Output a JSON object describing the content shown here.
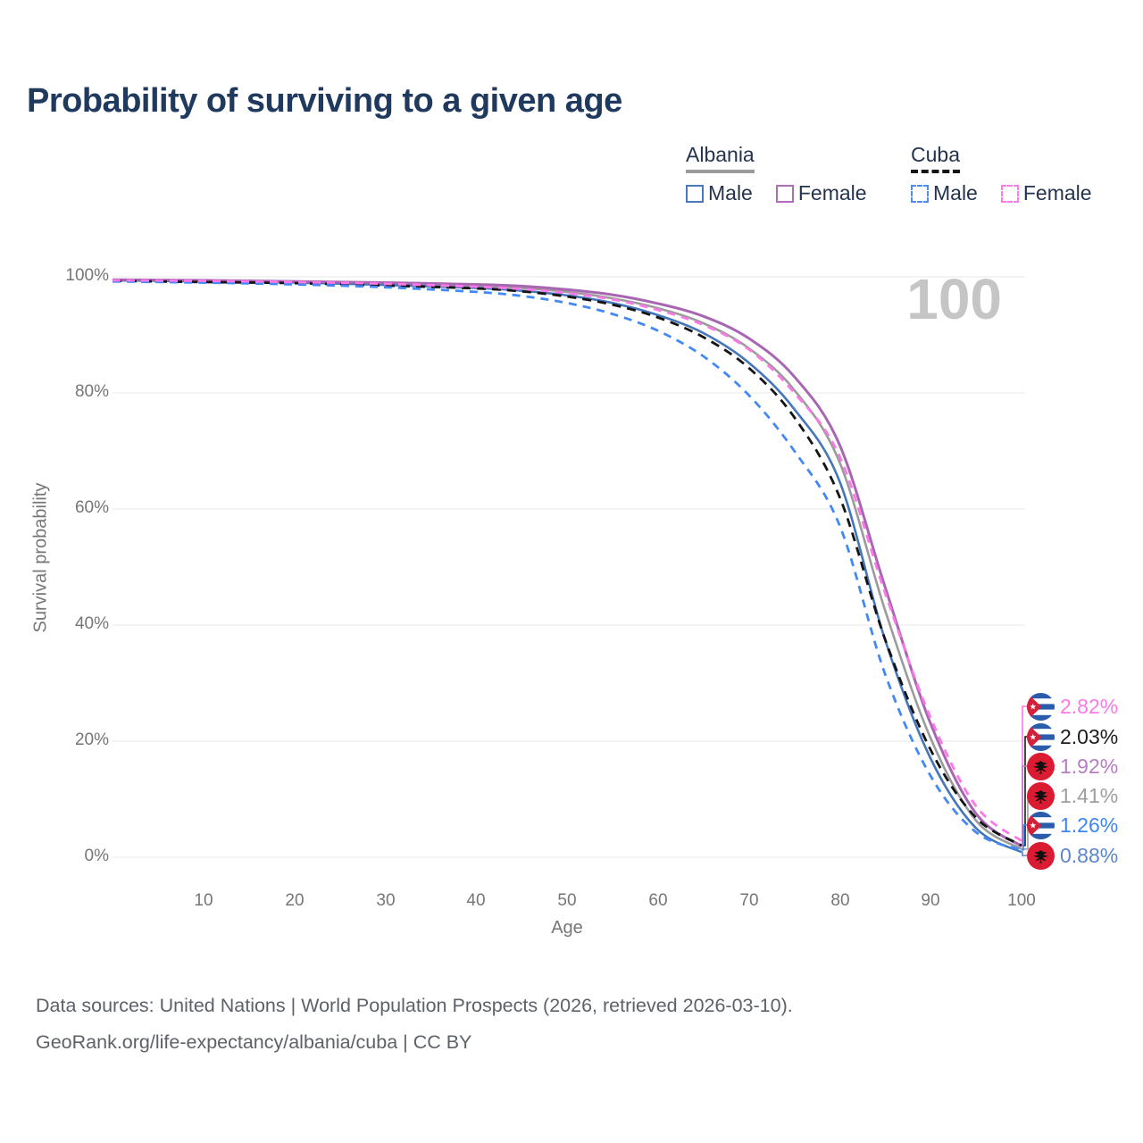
{
  "title": "Probability of surviving to a given age",
  "watermark": "100",
  "legend": {
    "groups": [
      {
        "label": "Albania",
        "line_style": "solid",
        "underline_color": "#9b9b9b",
        "items": [
          {
            "label": "Male",
            "color": "#4a78bd"
          },
          {
            "label": "Female",
            "color": "#b06cb8"
          }
        ]
      },
      {
        "label": "Cuba",
        "line_style": "dashed",
        "underline_color": "#141414",
        "items": [
          {
            "label": "Male",
            "color": "#4d8cf5"
          },
          {
            "label": "Female",
            "color": "#fb7ce8"
          }
        ]
      }
    ]
  },
  "chart_data": {
    "type": "line",
    "title": "Probability of surviving to a given age",
    "xlabel": "Age",
    "ylabel": "Survival probability",
    "xlim": [
      0,
      100
    ],
    "ylim": [
      0,
      100
    ],
    "grid": "horizontal",
    "legend_position": "top-right",
    "x_ticks": [
      "10",
      "20",
      "30",
      "40",
      "50",
      "60",
      "70",
      "80",
      "90",
      "100"
    ],
    "y_ticks": [
      "100%",
      "80%",
      "60%",
      "40%",
      "20%",
      "0%"
    ],
    "y_tick_values": [
      100,
      80,
      60,
      40,
      20,
      0
    ],
    "x": [
      0,
      10,
      20,
      30,
      40,
      45,
      50,
      55,
      60,
      65,
      70,
      75,
      80,
      85,
      90,
      95,
      100
    ],
    "series": [
      {
        "name": "Albania Total",
        "country": "Albania",
        "sex": "Total",
        "color": "#9b9b9b",
        "dash": null,
        "width": 2.6,
        "values": [
          99.4,
          99.3,
          99.2,
          98.9,
          98.5,
          98.1,
          97.4,
          96.3,
          94.6,
          92.0,
          87.7,
          80.5,
          68.0,
          42.5,
          20.5,
          6.3,
          1.41
        ]
      },
      {
        "name": "Albania Male",
        "country": "Albania",
        "sex": "Male",
        "color": "#4476ba",
        "dash": null,
        "width": 2.6,
        "values": [
          99.4,
          99.2,
          99.0,
          98.6,
          98.1,
          97.6,
          96.8,
          95.5,
          93.4,
          90.3,
          85.2,
          77.2,
          64.7,
          37.4,
          17.0,
          5.0,
          0.88
        ]
      },
      {
        "name": "Albania Female",
        "country": "Albania",
        "sex": "Female",
        "color": "#a765b2",
        "dash": null,
        "width": 3,
        "values": [
          99.5,
          99.4,
          99.2,
          99.0,
          98.7,
          98.4,
          97.8,
          96.9,
          95.4,
          93.2,
          89.4,
          82.8,
          71.0,
          46.5,
          23.0,
          7.5,
          1.92
        ]
      },
      {
        "name": "Cuba Total",
        "country": "Cuba",
        "sex": "Total",
        "color": "#141414",
        "dash": "10 7",
        "width": 2.8,
        "values": [
          99.3,
          99.1,
          98.9,
          98.5,
          98.0,
          97.5,
          96.6,
          95.2,
          93.0,
          89.6,
          84.3,
          75.8,
          62.0,
          37.5,
          18.5,
          6.8,
          2.03
        ]
      },
      {
        "name": "Cuba Male",
        "country": "Cuba",
        "sex": "Male",
        "color": "#4389f6",
        "dash": "9 7",
        "width": 2.8,
        "values": [
          99.2,
          99.0,
          98.7,
          98.2,
          97.4,
          96.7,
          95.5,
          93.6,
          90.7,
          86.3,
          79.6,
          70.0,
          57.1,
          31.5,
          14.0,
          4.3,
          1.26
        ]
      },
      {
        "name": "Cuba Female",
        "country": "Cuba",
        "sex": "Female",
        "color": "#fb78e6",
        "dash": "9 7",
        "width": 2.8,
        "values": [
          99.4,
          99.3,
          99.1,
          98.8,
          98.3,
          97.9,
          97.2,
          96.1,
          94.3,
          91.7,
          87.5,
          80.0,
          69.0,
          45.5,
          24.0,
          8.8,
          2.82
        ]
      }
    ]
  },
  "end_labels": [
    {
      "series": "Cuba Female",
      "flag": "cuba",
      "value": "2.82%",
      "end_value": 2.82,
      "color": "#fb78e6"
    },
    {
      "series": "Cuba Total",
      "flag": "cuba",
      "value": "2.03%",
      "end_value": 2.03,
      "color": "#1c1c1c"
    },
    {
      "series": "Albania Female",
      "flag": "albania",
      "value": "1.92%",
      "end_value": 1.92,
      "color": "#b77cc1"
    },
    {
      "series": "Albania Total",
      "flag": "albania",
      "value": "1.41%",
      "end_value": 1.41,
      "color": "#9e9e9e"
    },
    {
      "series": "Cuba Male",
      "flag": "cuba",
      "value": "1.26%",
      "end_value": 1.26,
      "color": "#3c86f2"
    },
    {
      "series": "Albania Male",
      "flag": "albania",
      "value": "0.88%",
      "end_value": 0.88,
      "color": "#5b86cd"
    }
  ],
  "footer": {
    "line1": "Data sources: United Nations | World Population Prospects (2026, retrieved 2026-03-10).",
    "line2": "GeoRank.org/life-expectancy/albania/cuba | CC BY"
  }
}
